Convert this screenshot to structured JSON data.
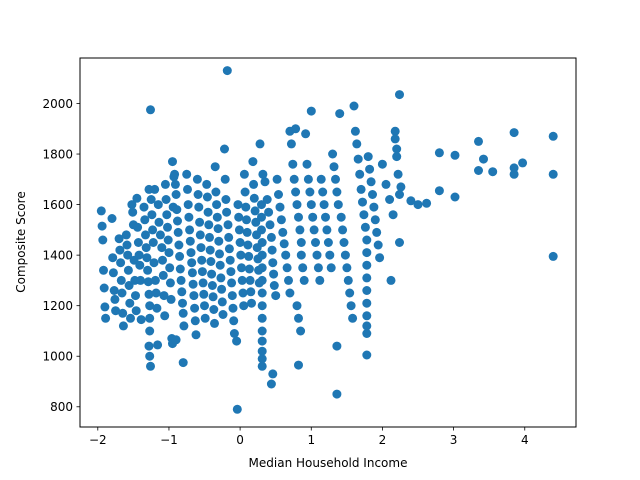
{
  "chart_data": {
    "type": "scatter",
    "xlabel": "Median Household Income",
    "ylabel": "Composite Score",
    "xlim": [
      -2.25,
      4.72
    ],
    "ylim": [
      720,
      2180
    ],
    "x_ticks": [
      -2,
      -1,
      0,
      1,
      2,
      3,
      4
    ],
    "x_tick_labels": [
      "−2",
      "−1",
      "0",
      "1",
      "2",
      "3",
      "4"
    ],
    "y_ticks": [
      800,
      1000,
      1200,
      1400,
      1600,
      1800,
      2000
    ],
    "y_tick_labels": [
      "800",
      "1000",
      "1200",
      "1400",
      "1600",
      "1800",
      "2000"
    ],
    "grid": false,
    "marker_color": "#1f77b4",
    "points": [
      [
        -1.95,
        1575
      ],
      [
        -1.94,
        1515
      ],
      [
        -1.93,
        1460
      ],
      [
        -1.92,
        1340
      ],
      [
        -1.91,
        1270
      ],
      [
        -1.9,
        1195
      ],
      [
        -1.89,
        1150
      ],
      [
        -1.8,
        1545
      ],
      [
        -1.79,
        1390
      ],
      [
        -1.78,
        1330
      ],
      [
        -1.77,
        1260
      ],
      [
        -1.76,
        1225
      ],
      [
        -1.75,
        1180
      ],
      [
        -1.7,
        1465
      ],
      [
        -1.69,
        1420
      ],
      [
        -1.68,
        1370
      ],
      [
        -1.67,
        1300
      ],
      [
        -1.66,
        1250
      ],
      [
        -1.65,
        1170
      ],
      [
        -1.64,
        1120
      ],
      [
        -1.6,
        1480
      ],
      [
        -1.59,
        1440
      ],
      [
        -1.58,
        1400
      ],
      [
        -1.57,
        1340
      ],
      [
        -1.56,
        1280
      ],
      [
        -1.55,
        1210
      ],
      [
        -1.54,
        1150
      ],
      [
        -1.52,
        1600
      ],
      [
        -1.51,
        1570
      ],
      [
        -1.5,
        1520
      ],
      [
        -1.49,
        1380
      ],
      [
        -1.48,
        1300
      ],
      [
        -1.47,
        1240
      ],
      [
        -1.46,
        1180
      ],
      [
        -1.45,
        1625
      ],
      [
        -1.44,
        1510
      ],
      [
        -1.43,
        1450
      ],
      [
        -1.42,
        1400
      ],
      [
        -1.41,
        1360
      ],
      [
        -1.4,
        1300
      ],
      [
        -1.39,
        1145
      ],
      [
        -1.35,
        1590
      ],
      [
        -1.34,
        1540
      ],
      [
        -1.33,
        1480
      ],
      [
        -1.32,
        1430
      ],
      [
        -1.31,
        1390
      ],
      [
        -1.3,
        1340
      ],
      [
        -1.29,
        1295
      ],
      [
        -1.28,
        1660
      ],
      [
        -1.28,
        1245
      ],
      [
        -1.27,
        1200
      ],
      [
        -1.27,
        1150
      ],
      [
        -1.27,
        1100
      ],
      [
        -1.28,
        1040
      ],
      [
        -1.27,
        1000
      ],
      [
        -1.26,
        1975
      ],
      [
        -1.26,
        960
      ],
      [
        -1.25,
        1620
      ],
      [
        -1.24,
        1560
      ],
      [
        -1.23,
        1500
      ],
      [
        -1.22,
        1450
      ],
      [
        -1.21,
        1370
      ],
      [
        -1.2,
        1660
      ],
      [
        -1.19,
        1300
      ],
      [
        -1.18,
        1250
      ],
      [
        -1.17,
        1190
      ],
      [
        -1.16,
        1045
      ],
      [
        -1.15,
        1600
      ],
      [
        -1.14,
        1530
      ],
      [
        -1.12,
        1480
      ],
      [
        -1.1,
        1430
      ],
      [
        -1.09,
        1380
      ],
      [
        -1.08,
        1320
      ],
      [
        -1.07,
        1240
      ],
      [
        -1.06,
        1160
      ],
      [
        -1.05,
        1680
      ],
      [
        -1.04,
        1620
      ],
      [
        -1.03,
        1560
      ],
      [
        -1.02,
        1510
      ],
      [
        -1.01,
        1460
      ],
      [
        -1.0,
        1410
      ],
      [
        -0.99,
        1350
      ],
      [
        -0.98,
        1290
      ],
      [
        -0.97,
        1225
      ],
      [
        -0.96,
        1070
      ],
      [
        -0.95,
        1050
      ],
      [
        -0.94,
        1590
      ],
      [
        -0.92,
        1720
      ],
      [
        -0.91,
        1680
      ],
      [
        -0.9,
        1640
      ],
      [
        -0.89,
        1580
      ],
      [
        -0.88,
        1535
      ],
      [
        -0.87,
        1490
      ],
      [
        -0.86,
        1440
      ],
      [
        -0.85,
        1395
      ],
      [
        -0.84,
        1345
      ],
      [
        -0.83,
        1300
      ],
      [
        -0.82,
        1255
      ],
      [
        -0.81,
        1210
      ],
      [
        -0.8,
        1170
      ],
      [
        -0.79,
        1120
      ],
      [
        -0.8,
        975
      ],
      [
        -0.9,
        1065
      ],
      [
        -0.95,
        1770
      ],
      [
        -0.93,
        1710
      ],
      [
        -0.75,
        1720
      ],
      [
        -0.74,
        1660
      ],
      [
        -0.73,
        1600
      ],
      [
        -0.72,
        1550
      ],
      [
        -0.71,
        1500
      ],
      [
        -0.7,
        1455
      ],
      [
        -0.69,
        1410
      ],
      [
        -0.68,
        1370
      ],
      [
        -0.67,
        1330
      ],
      [
        -0.66,
        1285
      ],
      [
        -0.65,
        1240
      ],
      [
        -0.64,
        1190
      ],
      [
        -0.63,
        1140
      ],
      [
        -0.62,
        1085
      ],
      [
        -0.6,
        1700
      ],
      [
        -0.59,
        1640
      ],
      [
        -0.58,
        1590
      ],
      [
        -0.57,
        1530
      ],
      [
        -0.56,
        1480
      ],
      [
        -0.55,
        1430
      ],
      [
        -0.54,
        1380
      ],
      [
        -0.53,
        1335
      ],
      [
        -0.52,
        1290
      ],
      [
        -0.51,
        1245
      ],
      [
        -0.5,
        1200
      ],
      [
        -0.49,
        1150
      ],
      [
        -0.47,
        1680
      ],
      [
        -0.46,
        1630
      ],
      [
        -0.45,
        1570
      ],
      [
        -0.44,
        1520
      ],
      [
        -0.43,
        1470
      ],
      [
        -0.42,
        1420
      ],
      [
        -0.41,
        1375
      ],
      [
        -0.4,
        1325
      ],
      [
        -0.39,
        1280
      ],
      [
        -0.38,
        1235
      ],
      [
        -0.37,
        1185
      ],
      [
        -0.36,
        1130
      ],
      [
        -0.35,
        1750
      ],
      [
        -0.34,
        1650
      ],
      [
        -0.33,
        1600
      ],
      [
        -0.32,
        1550
      ],
      [
        -0.31,
        1505
      ],
      [
        -0.3,
        1455
      ],
      [
        -0.29,
        1405
      ],
      [
        -0.28,
        1360
      ],
      [
        -0.27,
        1310
      ],
      [
        -0.26,
        1265
      ],
      [
        -0.25,
        1215
      ],
      [
        -0.24,
        1165
      ],
      [
        -0.22,
        1820
      ],
      [
        -0.21,
        1700
      ],
      [
        -0.2,
        1620
      ],
      [
        -0.19,
        1570
      ],
      [
        -0.18,
        2130
      ],
      [
        -0.17,
        1520
      ],
      [
        -0.16,
        1470
      ],
      [
        -0.15,
        1425
      ],
      [
        -0.14,
        1380
      ],
      [
        -0.13,
        1335
      ],
      [
        -0.12,
        1290
      ],
      [
        -0.11,
        1240
      ],
      [
        -0.1,
        1190
      ],
      [
        -0.09,
        1140
      ],
      [
        -0.08,
        1090
      ],
      [
        -0.05,
        1060
      ],
      [
        -0.04,
        790
      ],
      [
        -0.03,
        1600
      ],
      [
        -0.02,
        1550
      ],
      [
        -0.01,
        1500
      ],
      [
        0.0,
        1450
      ],
      [
        0.01,
        1400
      ],
      [
        0.02,
        1350
      ],
      [
        0.03,
        1300
      ],
      [
        0.04,
        1250
      ],
      [
        0.05,
        1200
      ],
      [
        0.06,
        1720
      ],
      [
        0.07,
        1650
      ],
      [
        0.08,
        1590
      ],
      [
        0.09,
        1540
      ],
      [
        0.1,
        1490
      ],
      [
        0.11,
        1440
      ],
      [
        0.12,
        1395
      ],
      [
        0.13,
        1345
      ],
      [
        0.14,
        1300
      ],
      [
        0.15,
        1255
      ],
      [
        0.16,
        1210
      ],
      [
        0.18,
        1770
      ],
      [
        0.19,
        1680
      ],
      [
        0.2,
        1625
      ],
      [
        0.21,
        1575
      ],
      [
        0.22,
        1530
      ],
      [
        0.23,
        1480
      ],
      [
        0.24,
        1430
      ],
      [
        0.25,
        1385
      ],
      [
        0.26,
        1340
      ],
      [
        0.27,
        1290
      ],
      [
        0.28,
        1840
      ],
      [
        0.3,
        1600
      ],
      [
        0.3,
        1550
      ],
      [
        0.3,
        1500
      ],
      [
        0.31,
        1450
      ],
      [
        0.31,
        1400
      ],
      [
        0.31,
        1350
      ],
      [
        0.31,
        1300
      ],
      [
        0.31,
        1250
      ],
      [
        0.31,
        1200
      ],
      [
        0.31,
        1150
      ],
      [
        0.31,
        1100
      ],
      [
        0.31,
        1060
      ],
      [
        0.31,
        1020
      ],
      [
        0.31,
        990
      ],
      [
        0.31,
        960
      ],
      [
        0.32,
        1720
      ],
      [
        0.35,
        1690
      ],
      [
        0.38,
        1620
      ],
      [
        0.4,
        1570
      ],
      [
        0.42,
        1520
      ],
      [
        0.44,
        1470
      ],
      [
        0.45,
        1420
      ],
      [
        0.46,
        1370
      ],
      [
        0.47,
        1325
      ],
      [
        0.48,
        1280
      ],
      [
        0.46,
        930
      ],
      [
        0.44,
        890
      ],
      [
        0.5,
        1240
      ],
      [
        0.52,
        1700
      ],
      [
        0.54,
        1640
      ],
      [
        0.56,
        1590
      ],
      [
        0.58,
        1540
      ],
      [
        0.6,
        1490
      ],
      [
        0.62,
        1445
      ],
      [
        0.64,
        1400
      ],
      [
        0.66,
        1350
      ],
      [
        0.68,
        1300
      ],
      [
        0.7,
        1250
      ],
      [
        0.7,
        1890
      ],
      [
        0.72,
        1840
      ],
      [
        0.74,
        1760
      ],
      [
        0.76,
        1700
      ],
      [
        0.78,
        1650
      ],
      [
        0.78,
        1900
      ],
      [
        0.8,
        1600
      ],
      [
        0.8,
        1200
      ],
      [
        0.82,
        1550
      ],
      [
        0.82,
        1150
      ],
      [
        0.84,
        1500
      ],
      [
        0.85,
        1100
      ],
      [
        0.86,
        1450
      ],
      [
        0.86,
        1400
      ],
      [
        0.82,
        965
      ],
      [
        0.88,
        1350
      ],
      [
        0.9,
        1300
      ],
      [
        0.92,
        1880
      ],
      [
        0.94,
        1760
      ],
      [
        0.96,
        1700
      ],
      [
        0.98,
        1650
      ],
      [
        1.0,
        1600
      ],
      [
        1.0,
        1970
      ],
      [
        1.02,
        1550
      ],
      [
        1.04,
        1500
      ],
      [
        1.06,
        1450
      ],
      [
        1.08,
        1400
      ],
      [
        1.1,
        1350
      ],
      [
        1.12,
        1300
      ],
      [
        1.14,
        1700
      ],
      [
        1.16,
        1650
      ],
      [
        1.18,
        1600
      ],
      [
        1.2,
        1550
      ],
      [
        1.22,
        1500
      ],
      [
        1.24,
        1450
      ],
      [
        1.26,
        1400
      ],
      [
        1.28,
        1350
      ],
      [
        1.3,
        1800
      ],
      [
        1.32,
        1750
      ],
      [
        1.34,
        1700
      ],
      [
        1.36,
        1650
      ],
      [
        1.36,
        1040
      ],
      [
        1.36,
        850
      ],
      [
        1.38,
        1600
      ],
      [
        1.4,
        1960
      ],
      [
        1.42,
        1550
      ],
      [
        1.44,
        1500
      ],
      [
        1.46,
        1450
      ],
      [
        1.48,
        1400
      ],
      [
        1.5,
        1350
      ],
      [
        1.52,
        1300
      ],
      [
        1.54,
        1250
      ],
      [
        1.56,
        1200
      ],
      [
        1.58,
        1150
      ],
      [
        1.6,
        1990
      ],
      [
        1.62,
        1890
      ],
      [
        1.64,
        1840
      ],
      [
        1.66,
        1780
      ],
      [
        1.68,
        1720
      ],
      [
        1.7,
        1660
      ],
      [
        1.72,
        1610
      ],
      [
        1.74,
        1560
      ],
      [
        1.76,
        1510
      ],
      [
        1.78,
        1460
      ],
      [
        1.78,
        1410
      ],
      [
        1.78,
        1360
      ],
      [
        1.78,
        1310
      ],
      [
        1.78,
        1260
      ],
      [
        1.78,
        1210
      ],
      [
        1.78,
        1160
      ],
      [
        1.78,
        1120
      ],
      [
        1.78,
        1090
      ],
      [
        1.78,
        1005
      ],
      [
        1.8,
        1790
      ],
      [
        1.82,
        1740
      ],
      [
        1.84,
        1690
      ],
      [
        1.86,
        1640
      ],
      [
        1.88,
        1590
      ],
      [
        1.9,
        1540
      ],
      [
        1.92,
        1490
      ],
      [
        1.94,
        1440
      ],
      [
        1.96,
        1390
      ],
      [
        2.0,
        1760
      ],
      [
        2.05,
        1680
      ],
      [
        2.1,
        1620
      ],
      [
        2.12,
        1300
      ],
      [
        2.15,
        1560
      ],
      [
        2.18,
        1890
      ],
      [
        2.18,
        1860
      ],
      [
        2.2,
        1820
      ],
      [
        2.2,
        1790
      ],
      [
        2.22,
        1720
      ],
      [
        2.24,
        2035
      ],
      [
        2.24,
        1640
      ],
      [
        2.24,
        1450
      ],
      [
        2.26,
        1670
      ],
      [
        2.4,
        1615
      ],
      [
        2.5,
        1600
      ],
      [
        2.62,
        1605
      ],
      [
        2.8,
        1805
      ],
      [
        2.8,
        1655
      ],
      [
        3.02,
        1795
      ],
      [
        3.02,
        1630
      ],
      [
        3.35,
        1850
      ],
      [
        3.35,
        1735
      ],
      [
        3.42,
        1780
      ],
      [
        3.55,
        1730
      ],
      [
        3.85,
        1885
      ],
      [
        3.85,
        1745
      ],
      [
        3.85,
        1720
      ],
      [
        3.97,
        1765
      ],
      [
        4.4,
        1870
      ],
      [
        4.4,
        1720
      ],
      [
        4.4,
        1395
      ]
    ]
  }
}
